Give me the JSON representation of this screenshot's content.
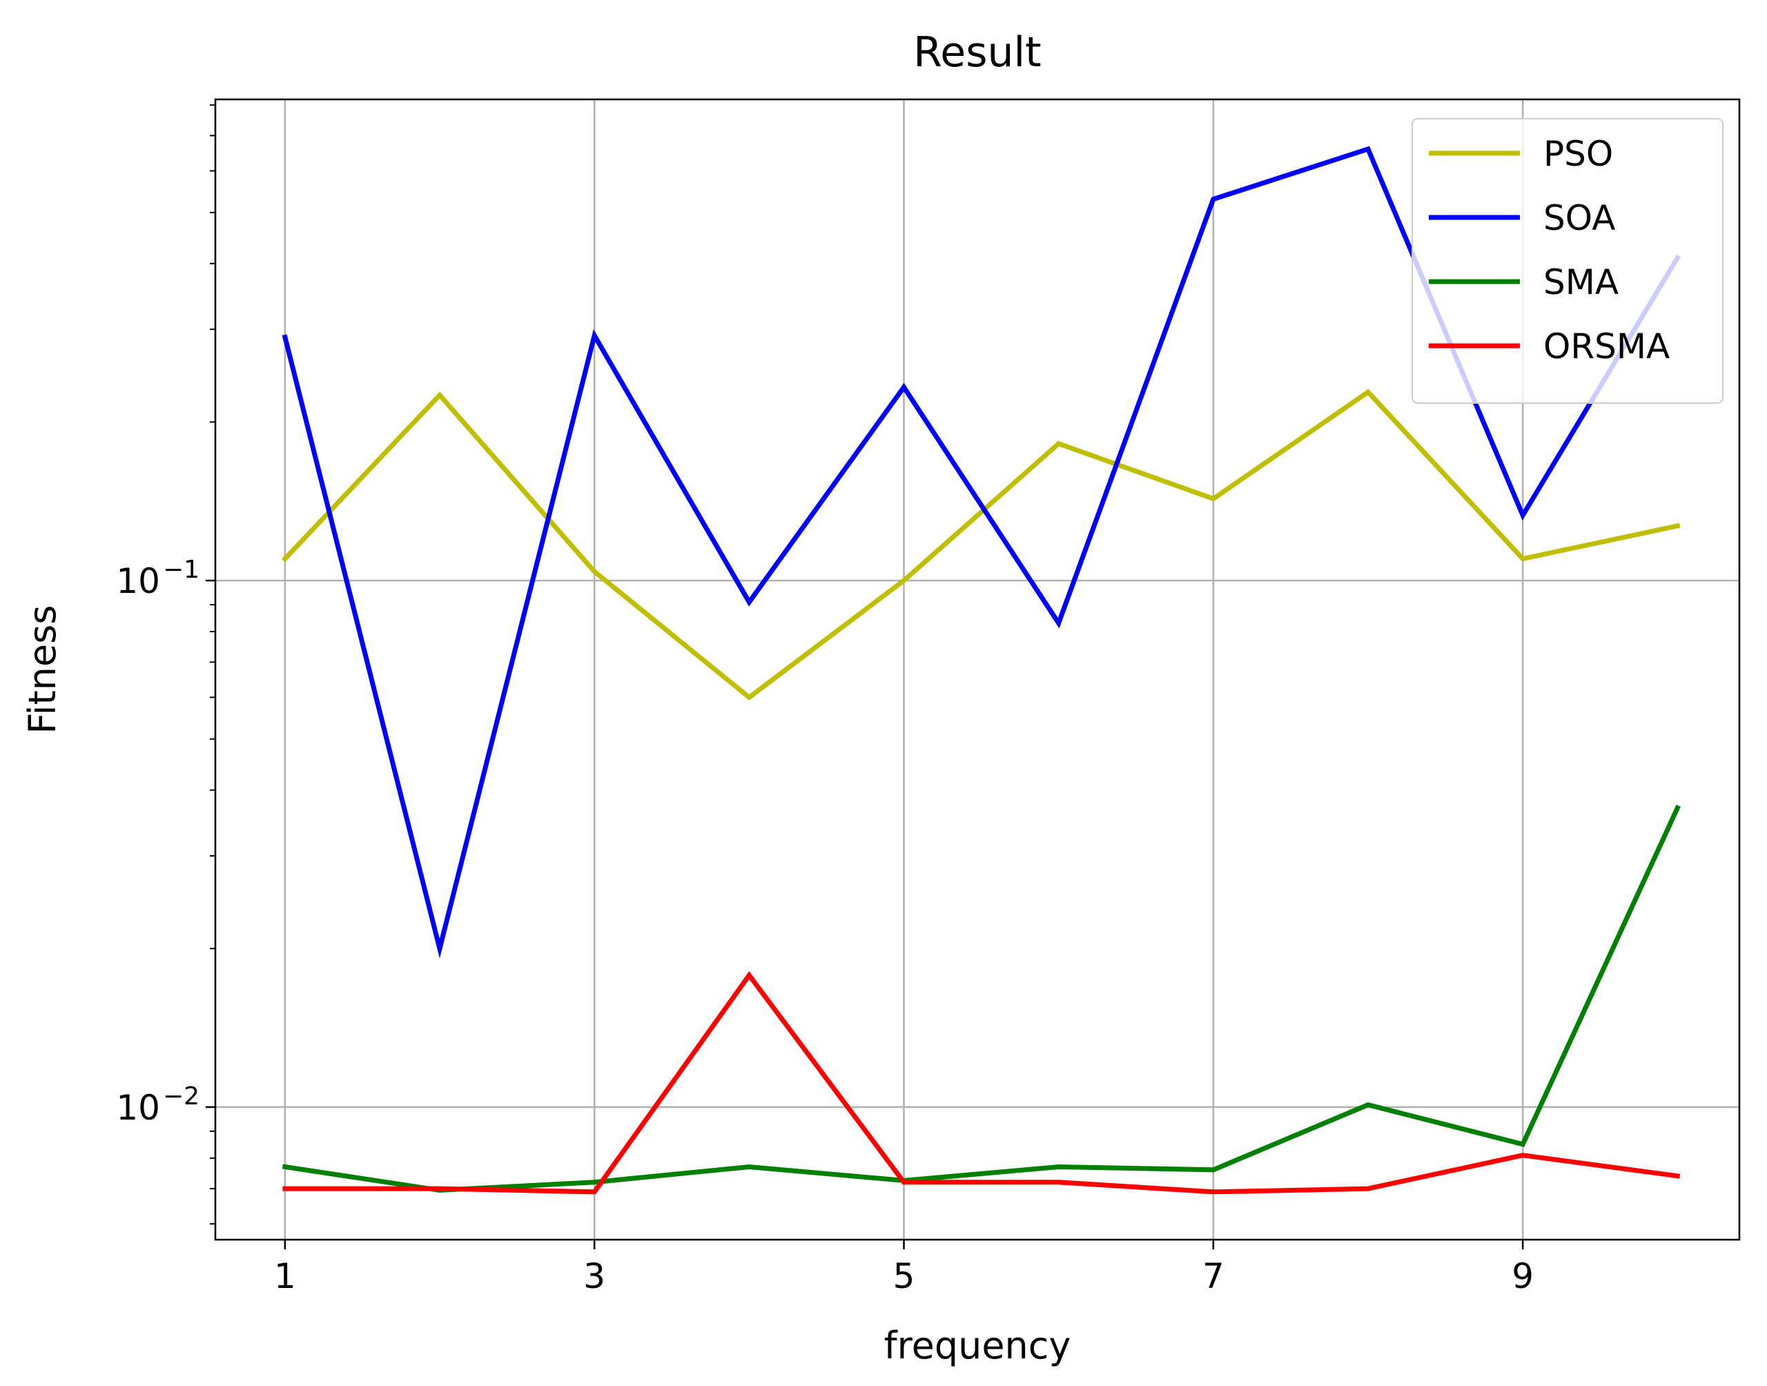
{
  "chart_data": {
    "type": "line",
    "title": "Result",
    "xlabel": "frequency",
    "ylabel": "Fitness",
    "yscale": "log",
    "x": [
      1,
      2,
      3,
      4,
      5,
      6,
      7,
      8,
      9,
      10
    ],
    "x_ticks": [
      {
        "value": 1,
        "label": "1"
      },
      {
        "value": 3,
        "label": "3"
      },
      {
        "value": 5,
        "label": "5"
      },
      {
        "value": 7,
        "label": "7"
      },
      {
        "value": 9,
        "label": "9"
      }
    ],
    "y_ticks": [
      {
        "value": 0.01,
        "base": "10",
        "exp": "−2"
      },
      {
        "value": 0.1,
        "base": "10",
        "exp": "−1"
      }
    ],
    "xlim": [
      0.55,
      10.4
    ],
    "ylim": [
      0.0056,
      0.82
    ],
    "grid": true,
    "legend": "top-right",
    "series": [
      {
        "name": "PSO",
        "color": "#bfbf00",
        "values": [
          0.11,
          0.225,
          0.104,
          0.06,
          0.1,
          0.182,
          0.143,
          0.228,
          0.11,
          0.127
        ]
      },
      {
        "name": "SOA",
        "color": "#0000ff",
        "values": [
          0.29,
          0.02,
          0.292,
          0.091,
          0.233,
          0.083,
          0.53,
          0.66,
          0.133,
          0.41
        ]
      },
      {
        "name": "SMA",
        "color": "#008000",
        "values": [
          0.0077,
          0.00695,
          0.0072,
          0.0077,
          0.00725,
          0.0077,
          0.0076,
          0.0101,
          0.0085,
          0.037
        ]
      },
      {
        "name": "ORSMA",
        "color": "#ff0000",
        "values": [
          0.007,
          0.007,
          0.0069,
          0.0178,
          0.0072,
          0.0072,
          0.0069,
          0.007,
          0.0081,
          0.0074
        ]
      }
    ]
  }
}
